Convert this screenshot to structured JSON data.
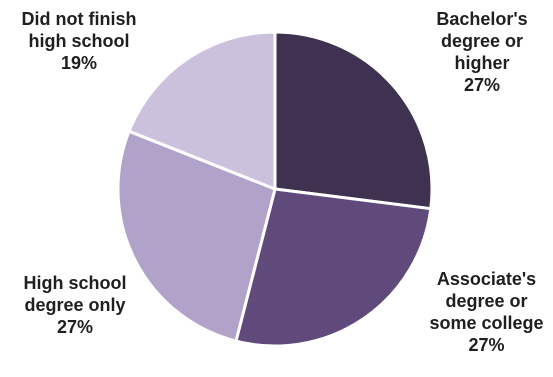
{
  "chart_data": {
    "type": "pie",
    "title": "",
    "slices": [
      {
        "label_lines": [
          "Bachelor's",
          "degree or",
          "higher"
        ],
        "value": 27,
        "value_label": "27%",
        "color": "#3f3150"
      },
      {
        "label_lines": [
          "Associate's",
          "degree or",
          "some college"
        ],
        "value": 27,
        "value_label": "27%",
        "color": "#5f4a7b"
      },
      {
        "label_lines": [
          "High school",
          "degree only"
        ],
        "value": 27,
        "value_label": "27%",
        "color": "#b1a2c9"
      },
      {
        "label_lines": [
          "Did not finish",
          "high school"
        ],
        "value": 19,
        "value_label": "19%",
        "color": "#cbc1dd"
      }
    ],
    "start": "12 o'clock",
    "direction": "clockwise",
    "slice_border_color": "#ffffff",
    "legend": "none"
  }
}
